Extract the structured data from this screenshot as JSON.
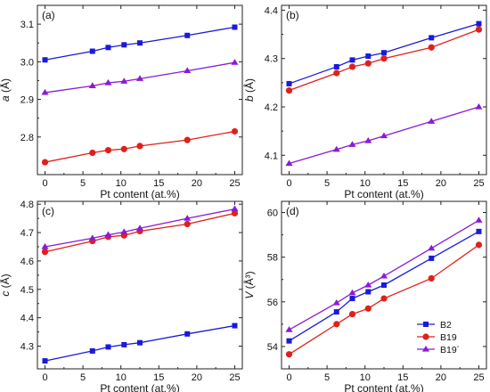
{
  "chart_data": [
    {
      "type": "line",
      "panel_label": "(a)",
      "xlabel": "Pt content (at.%)",
      "ylabel_main": "a",
      "ylabel_unit": " (Å)",
      "x": [
        0,
        6.25,
        8.33,
        10.42,
        12.5,
        18.75,
        25
      ],
      "xticks": [
        0,
        5,
        10,
        15,
        20,
        25
      ],
      "xlim": [
        -1,
        26
      ],
      "ylim": [
        2.7,
        3.15
      ],
      "yticks": [
        2.8,
        2.9,
        3.0,
        3.1
      ],
      "ytick_labels": [
        "2.8",
        "2.9",
        "3.0",
        "3.1"
      ],
      "series": [
        {
          "name": "B2",
          "color": "#1a1adb",
          "marker": "square",
          "values": [
            3.005,
            3.028,
            3.038,
            3.045,
            3.05,
            3.07,
            3.092
          ]
        },
        {
          "name": "B19",
          "color": "#e0201a",
          "marker": "circle",
          "values": [
            2.733,
            2.758,
            2.765,
            2.768,
            2.776,
            2.792,
            2.815
          ]
        },
        {
          "name": "B19´",
          "color": "#8b1ad6",
          "marker": "triangle",
          "values": [
            2.918,
            2.936,
            2.944,
            2.948,
            2.955,
            2.976,
            2.998
          ]
        }
      ]
    },
    {
      "type": "line",
      "panel_label": "(b)",
      "xlabel": "Pt content (at.%)",
      "ylabel_main": "b",
      "ylabel_unit": " (Å)",
      "x": [
        0,
        6.25,
        8.33,
        10.42,
        12.5,
        18.75,
        25
      ],
      "xticks": [
        0,
        5,
        10,
        15,
        20,
        25
      ],
      "xlim": [
        -1,
        26
      ],
      "ylim": [
        4.06,
        4.41
      ],
      "yticks": [
        4.1,
        4.2,
        4.3,
        4.4
      ],
      "ytick_labels": [
        "4.1",
        "4.2",
        "4.3",
        "4.4"
      ],
      "series": [
        {
          "name": "B2",
          "color": "#1a1adb",
          "marker": "square",
          "values": [
            4.248,
            4.283,
            4.297,
            4.305,
            4.312,
            4.343,
            4.372
          ]
        },
        {
          "name": "B19",
          "color": "#e0201a",
          "marker": "circle",
          "values": [
            4.234,
            4.27,
            4.283,
            4.29,
            4.3,
            4.323,
            4.36
          ]
        },
        {
          "name": "B19´",
          "color": "#8b1ad6",
          "marker": "triangle",
          "values": [
            4.083,
            4.112,
            4.122,
            4.13,
            4.14,
            4.17,
            4.2
          ]
        }
      ]
    },
    {
      "type": "line",
      "panel_label": "(c)",
      "xlabel": "Pt content (at.%)",
      "ylabel_main": "c",
      "ylabel_unit": " (Å)",
      "x": [
        0,
        6.25,
        8.33,
        10.42,
        12.5,
        18.75,
        25
      ],
      "xticks": [
        0,
        5,
        10,
        15,
        20,
        25
      ],
      "xlim": [
        -1,
        26
      ],
      "ylim": [
        4.22,
        4.81
      ],
      "yticks": [
        4.3,
        4.4,
        4.5,
        4.6,
        4.7,
        4.8
      ],
      "ytick_labels": [
        "4.3",
        "4.4",
        "4.5",
        "4.6",
        "4.7",
        "4.8"
      ],
      "series": [
        {
          "name": "B2",
          "color": "#1a1adb",
          "marker": "square",
          "values": [
            4.248,
            4.283,
            4.297,
            4.305,
            4.312,
            4.343,
            4.372
          ]
        },
        {
          "name": "B19",
          "color": "#e0201a",
          "marker": "circle",
          "values": [
            4.632,
            4.67,
            4.685,
            4.69,
            4.705,
            4.73,
            4.768
          ]
        },
        {
          "name": "B19´",
          "color": "#8b1ad6",
          "marker": "triangle",
          "values": [
            4.65,
            4.68,
            4.692,
            4.702,
            4.715,
            4.75,
            4.783
          ]
        }
      ]
    },
    {
      "type": "line",
      "panel_label": "(d)",
      "xlabel": "Pt content (at.%)",
      "ylabel_main": "V",
      "ylabel_unit": " (Å³)",
      "x": [
        0,
        6.25,
        8.33,
        10.42,
        12.5,
        18.75,
        25
      ],
      "xticks": [
        0,
        5,
        10,
        15,
        20,
        25
      ],
      "xlim": [
        -1,
        26
      ],
      "ylim": [
        53.0,
        60.5
      ],
      "yticks": [
        54,
        56,
        58,
        60
      ],
      "ytick_labels": [
        "54",
        "56",
        "58",
        "60"
      ],
      "legend": "bottom-right",
      "series": [
        {
          "name": "B2",
          "color": "#1a1adb",
          "marker": "square",
          "values": [
            54.25,
            55.55,
            56.15,
            56.45,
            56.75,
            57.95,
            59.15
          ]
        },
        {
          "name": "B19",
          "color": "#e0201a",
          "marker": "circle",
          "values": [
            53.65,
            55.0,
            55.45,
            55.7,
            56.15,
            57.05,
            58.55
          ]
        },
        {
          "name": "B19´",
          "color": "#8b1ad6",
          "marker": "triangle",
          "values": [
            54.75,
            55.95,
            56.4,
            56.75,
            57.15,
            58.4,
            59.65
          ]
        }
      ]
    }
  ]
}
